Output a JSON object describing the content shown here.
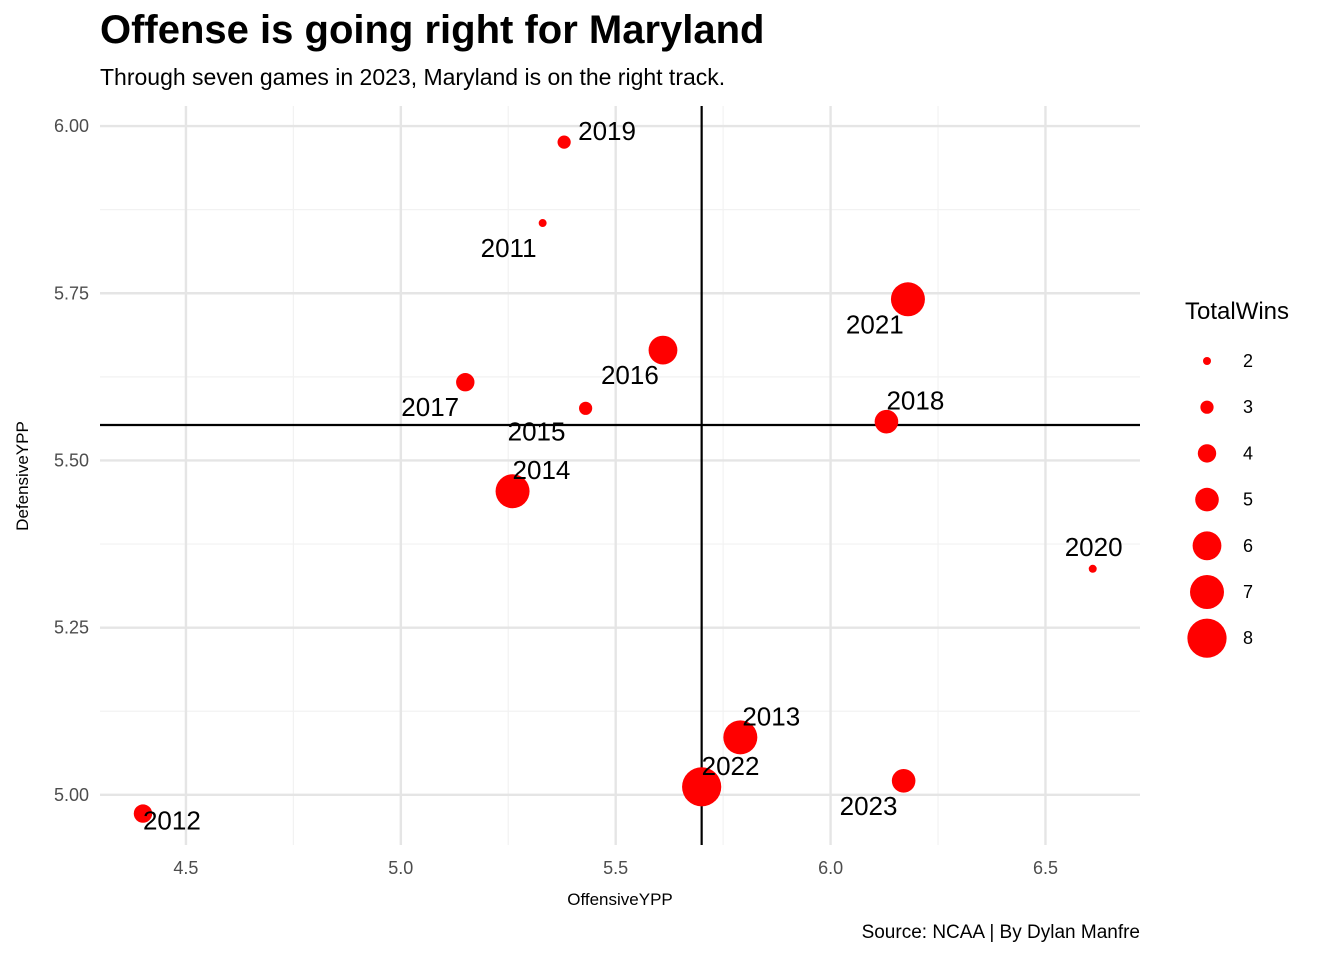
{
  "title": "Offense is going right for Maryland",
  "subtitle": "Through seven games in 2023, Maryland is on the right track.",
  "caption": "Source: NCAA | By Dylan Manfre",
  "chart_data": {
    "type": "scatter",
    "xlabel": "OffensiveYPP",
    "ylabel": "DefensiveYPP",
    "xlim": [
      4.3,
      6.72
    ],
    "ylim": [
      4.925,
      6.03
    ],
    "x_ticks": [
      "4.5",
      "5.0",
      "5.5",
      "6.0",
      "6.5"
    ],
    "y_ticks": [
      "5.00",
      "5.25",
      "5.50",
      "5.75",
      "6.00"
    ],
    "reference_lines": {
      "x": 5.7,
      "y": 5.553
    },
    "point_color": "#ff0000",
    "grid": true,
    "legend": {
      "title": "TotalWins",
      "position": "right",
      "values": [
        "2",
        "3",
        "4",
        "5",
        "6",
        "7",
        "8"
      ]
    },
    "points": [
      {
        "label": "2011",
        "x": 5.33,
        "y": 5.855,
        "wins": 2
      },
      {
        "label": "2012",
        "x": 4.4,
        "y": 4.972,
        "wins": 4
      },
      {
        "label": "2013",
        "x": 5.79,
        "y": 5.086,
        "wins": 7
      },
      {
        "label": "2014",
        "x": 5.26,
        "y": 5.454,
        "wins": 7
      },
      {
        "label": "2015",
        "x": 5.43,
        "y": 5.578,
        "wins": 3
      },
      {
        "label": "2016",
        "x": 5.61,
        "y": 5.665,
        "wins": 6
      },
      {
        "label": "2017",
        "x": 5.15,
        "y": 5.617,
        "wins": 4
      },
      {
        "label": "2018",
        "x": 6.13,
        "y": 5.558,
        "wins": 5
      },
      {
        "label": "2019",
        "x": 5.38,
        "y": 5.976,
        "wins": 3
      },
      {
        "label": "2020",
        "x": 6.61,
        "y": 5.338,
        "wins": 2
      },
      {
        "label": "2021",
        "x": 6.18,
        "y": 5.741,
        "wins": 7
      },
      {
        "label": "2022",
        "x": 5.7,
        "y": 5.012,
        "wins": 8
      },
      {
        "label": "2023",
        "x": 6.17,
        "y": 5.021,
        "wins": 5
      }
    ]
  }
}
